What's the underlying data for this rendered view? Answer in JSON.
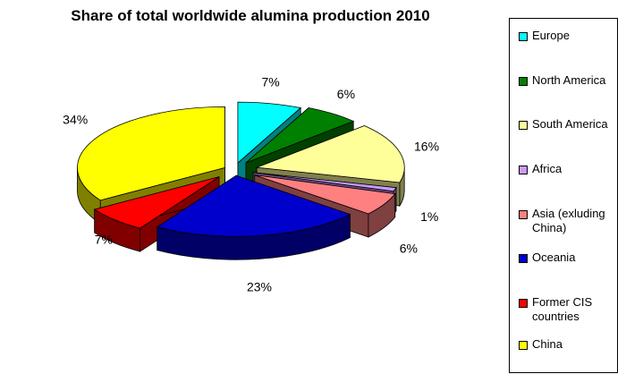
{
  "chart_data": {
    "type": "pie",
    "title": "Share of total worldwide alumina production 2010",
    "unit": "%",
    "slices": [
      {
        "name": "Europe",
        "value": 7,
        "label": "7%",
        "color": "#00ffff"
      },
      {
        "name": "North America",
        "value": 6,
        "label": "6%",
        "color": "#008000"
      },
      {
        "name": "South America",
        "value": 16,
        "label": "16%",
        "color": "#ffff99"
      },
      {
        "name": "Africa",
        "value": 1,
        "label": "1%",
        "color": "#cc99ff"
      },
      {
        "name": "Asia (exluding China)",
        "value": 6,
        "label": "6%",
        "color": "#ff8080"
      },
      {
        "name": "Oceania",
        "value": 23,
        "label": "23%",
        "color": "#0000cc"
      },
      {
        "name": "Former CIS countries",
        "value": 7,
        "label": "7%",
        "color": "#ff0000"
      },
      {
        "name": "China",
        "value": 34,
        "label": "34%",
        "color": "#ffff00"
      }
    ],
    "legend": {
      "position": "right",
      "items": [
        {
          "label": "Europe",
          "color": "#00ffff"
        },
        {
          "label": "North America",
          "color": "#008000"
        },
        {
          "label": "South America",
          "color": "#ffff99"
        },
        {
          "label": "Africa",
          "color": "#cc99ff"
        },
        {
          "label": "Asia (exluding China)",
          "color": "#ff8080"
        },
        {
          "label": "Oceania",
          "color": "#0000cc"
        },
        {
          "label": "Former CIS countries",
          "color": "#ff0000"
        },
        {
          "label": "China",
          "color": "#ffff00"
        }
      ]
    },
    "exploded": true,
    "three_d": true
  }
}
